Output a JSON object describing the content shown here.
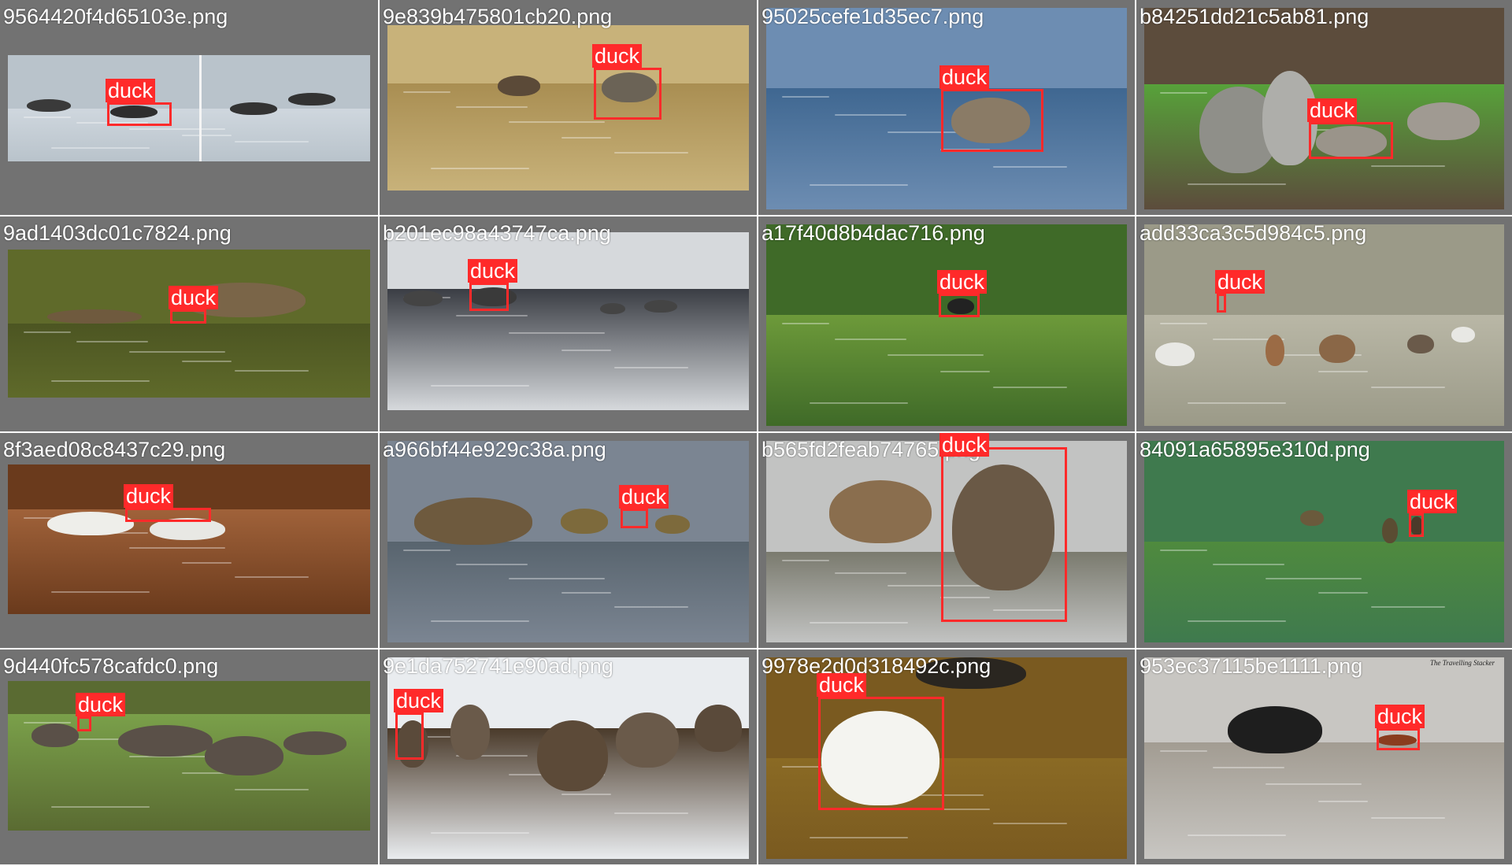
{
  "grid_title": "",
  "label_color": "#ff2a2a",
  "tiles": [
    {
      "filename": "9564420f4d65103e.png",
      "detections": [
        {
          "label": "duck"
        }
      ],
      "scene": "water-grey"
    },
    {
      "filename": "9e839b475801cb20.png",
      "detections": [
        {
          "label": "duck"
        }
      ],
      "scene": "field"
    },
    {
      "filename": "95025cefe1d35ec7.png",
      "detections": [
        {
          "label": "duck"
        }
      ],
      "scene": "water-blue"
    },
    {
      "filename": "b84251dd21c5ab81.png",
      "detections": [
        {
          "label": "duck"
        }
      ],
      "scene": "grass"
    },
    {
      "filename": "9ad1403dc01c7824.png",
      "detections": [
        {
          "label": "duck"
        }
      ],
      "scene": "water-olive"
    },
    {
      "filename": "b201ec98a43747ca.png",
      "detections": [
        {
          "label": "duck"
        }
      ],
      "scene": "water-dark"
    },
    {
      "filename": "a17f40d8b4dac716.png",
      "detections": [
        {
          "label": "duck"
        }
      ],
      "scene": "water-green"
    },
    {
      "filename": "add33ca3c5d984c5.png",
      "detections": [
        {
          "label": "duck"
        }
      ],
      "scene": "misty-lake"
    },
    {
      "filename": "8f3aed08c8437c29.png",
      "detections": [
        {
          "label": "duck"
        }
      ],
      "scene": "water-brown"
    },
    {
      "filename": "a966bf44e929c38a.png",
      "detections": [
        {
          "label": "duck"
        }
      ],
      "scene": "water-pond"
    },
    {
      "filename": "b565fd2feab74765.png",
      "detections": [
        {
          "label": "duck"
        }
      ],
      "scene": "rocks"
    },
    {
      "filename": "84091a65895e310d.png",
      "detections": [
        {
          "label": "duck"
        }
      ],
      "scene": "water-green-light"
    },
    {
      "filename": "9d440fc578cafdc0.png",
      "detections": [
        {
          "label": "duck"
        }
      ],
      "scene": "park"
    },
    {
      "filename": "9e1da752741e90ad.png",
      "detections": [
        {
          "label": "duck"
        }
      ],
      "scene": "shore"
    },
    {
      "filename": "9978e2d0d318492c.png",
      "detections": [
        {
          "label": "duck"
        }
      ],
      "scene": "water-amber"
    },
    {
      "filename": "953ec37115be1111.png",
      "detections": [
        {
          "label": "duck"
        }
      ],
      "scene": "sandbar",
      "watermark": "The Travelling Stacker"
    }
  ]
}
